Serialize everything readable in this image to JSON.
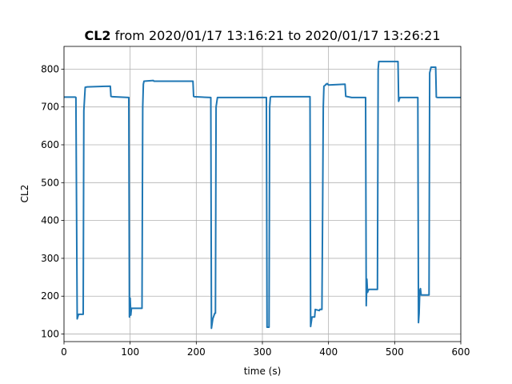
{
  "chart_data": {
    "type": "line",
    "title_bold": "CL2",
    "title_rest": " from 2020/01/17 13:16:21 to 2020/01/17 13:26:21",
    "xlabel": "time (s)",
    "ylabel": "CL2",
    "xlim": [
      0,
      600
    ],
    "ylim": [
      80,
      860
    ],
    "xticks": [
      0,
      100,
      200,
      300,
      400,
      500,
      600
    ],
    "yticks": [
      100,
      200,
      300,
      400,
      500,
      600,
      700,
      800
    ],
    "grid": true,
    "line_color": "#1f77b4",
    "series": [
      {
        "x": [
          0,
          17,
          18,
          20,
          22,
          29,
          30,
          32,
          35,
          70,
          71,
          73,
          98,
          99,
          100,
          101,
          102,
          103,
          118,
          119,
          120,
          121,
          135,
          136,
          195,
          196,
          197,
          222,
          223,
          225,
          228,
          229,
          230,
          232,
          306,
          307,
          310,
          311,
          312,
          313,
          372,
          373,
          375,
          379,
          380,
          386,
          387,
          390,
          391,
          392,
          393,
          395,
          396,
          397,
          398,
          400,
          425,
          426,
          435,
          436,
          456,
          457,
          458,
          459,
          460,
          461,
          462,
          463,
          474,
          475,
          476,
          505,
          506,
          508,
          510,
          535,
          536,
          537,
          538,
          539,
          540,
          541,
          552,
          553,
          555,
          562,
          563,
          565,
          600
        ],
        "y": [
          726,
          726,
          725,
          140,
          152,
          152,
          690,
          752,
          753,
          755,
          728,
          727,
          725,
          145,
          195,
          150,
          168,
          168,
          168,
          700,
          760,
          768,
          770,
          768,
          768,
          728,
          727,
          725,
          115,
          140,
          155,
          155,
          700,
          725,
          725,
          118,
          118,
          700,
          725,
          727,
          727,
          120,
          145,
          145,
          165,
          162,
          165,
          165,
          400,
          700,
          755,
          757,
          760,
          760,
          762,
          758,
          760,
          728,
          725,
          725,
          725,
          175,
          245,
          210,
          215,
          218,
          218,
          218,
          218,
          800,
          820,
          820,
          715,
          725,
          725,
          725,
          130,
          155,
          215,
          220,
          203,
          203,
          203,
          790,
          805,
          805,
          726,
          725,
          725
        ]
      }
    ]
  }
}
